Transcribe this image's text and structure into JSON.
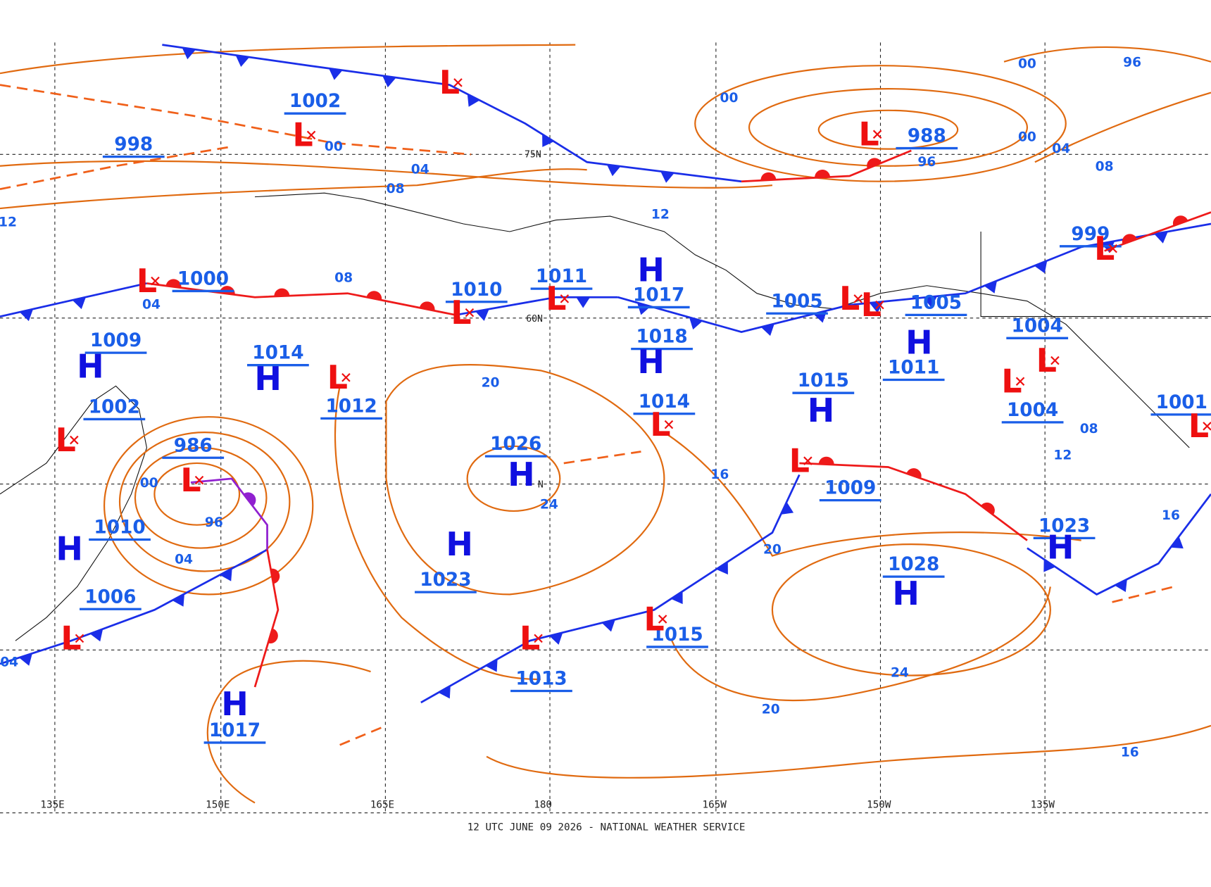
{
  "map": {
    "footer": "12 UTC JUNE 09 2026 - NATIONAL WEATHER SERVICE",
    "longitude_labels": [
      "135E",
      "150E",
      "165E",
      "180",
      "165W",
      "150W",
      "135W"
    ],
    "latitude_labels": [
      "75N",
      "60N",
      "N"
    ],
    "centers": [
      {
        "symbol": "L",
        "pressure": "1002"
      },
      {
        "symbol": "L"
      },
      {
        "pressure": "998"
      },
      {
        "symbol": "L",
        "pressure": "988"
      },
      {
        "symbol": "L",
        "pressure": "1000"
      },
      {
        "symbol": "H",
        "pressure": "1009"
      },
      {
        "symbol": "H",
        "pressure": "1014"
      },
      {
        "symbol": "L",
        "pressure": "1012"
      },
      {
        "symbol": "L",
        "pressure": "1010"
      },
      {
        "symbol": "L",
        "pressure": "1011"
      },
      {
        "symbol": "H",
        "pressure": "1017"
      },
      {
        "symbol": "H",
        "pressure": "1018"
      },
      {
        "symbol": "L",
        "pressure": "1014"
      },
      {
        "symbol": "H",
        "pressure": "1026"
      },
      {
        "symbol": "H",
        "pressure": "1023"
      },
      {
        "symbol": "L",
        "pressure": "1002"
      },
      {
        "symbol": "L",
        "pressure": "986"
      },
      {
        "symbol": "H",
        "pressure": "1010"
      },
      {
        "symbol": "L",
        "pressure": "1006"
      },
      {
        "symbol": "H",
        "pressure": "1017"
      },
      {
        "symbol": "L",
        "pressure": "1013"
      },
      {
        "symbol": "L",
        "pressure": "1015"
      },
      {
        "symbol": "L",
        "pressure": "1009"
      },
      {
        "symbol": "H",
        "pressure": "1028"
      },
      {
        "symbol": "H",
        "pressure": "1023"
      },
      {
        "symbol": "L",
        "pressure": "1005"
      },
      {
        "symbol": "L",
        "pressure": "1005"
      },
      {
        "symbol": "H",
        "pressure": "1011"
      },
      {
        "symbol": "H",
        "pressure": "1015"
      },
      {
        "symbol": "L",
        "pressure": "1004"
      },
      {
        "symbol": "L",
        "pressure": "1004"
      },
      {
        "symbol": "L",
        "pressure": "999"
      },
      {
        "symbol": "L",
        "pressure": "1001"
      }
    ],
    "isobar_labels": [
      "00",
      "04",
      "08",
      "00",
      "00",
      "96",
      "00",
      "04",
      "08",
      "96",
      "12",
      "08",
      "04",
      "12",
      "20",
      "24",
      "16",
      "20",
      "96",
      "00",
      "04",
      "24",
      "20",
      "16",
      "12",
      "08",
      "16",
      "04"
    ]
  }
}
